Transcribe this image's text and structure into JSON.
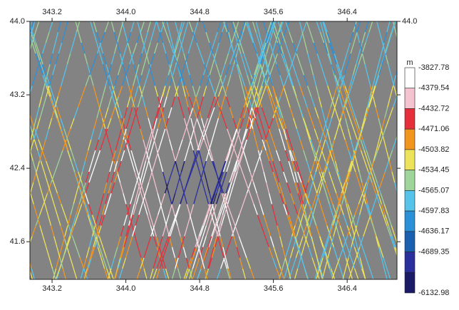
{
  "map": {
    "lonlim": [
      342.96,
      346.94
    ],
    "latlim": [
      41.19,
      44.0
    ],
    "xticks": [
      343.2,
      {
        "value": 344.0,
        "label": "344.0"
      },
      344.8,
      345.6,
      346.4
    ],
    "yticks": [
      {
        "value": 44.0,
        "label": "44.0"
      },
      43.2,
      42.4,
      41.6
    ],
    "colorbar": {
      "unit": "m",
      "labels": [
        -3827.78,
        -4379.54,
        -4432.72,
        -4471.06,
        -4503.82,
        -4534.45,
        -4565.07,
        -4597.83,
        -4636.17,
        -4689.35,
        -6132.98
      ],
      "colors": [
        "#ffffff",
        "#f4c3cf",
        "#e5303c",
        "#f2951f",
        "#ede35a",
        "#9fd49a",
        "#55c3ea",
        "#2a90d8",
        "#1a5fb0",
        "#2b2f9e",
        "#1a1a66"
      ]
    }
  }
}
